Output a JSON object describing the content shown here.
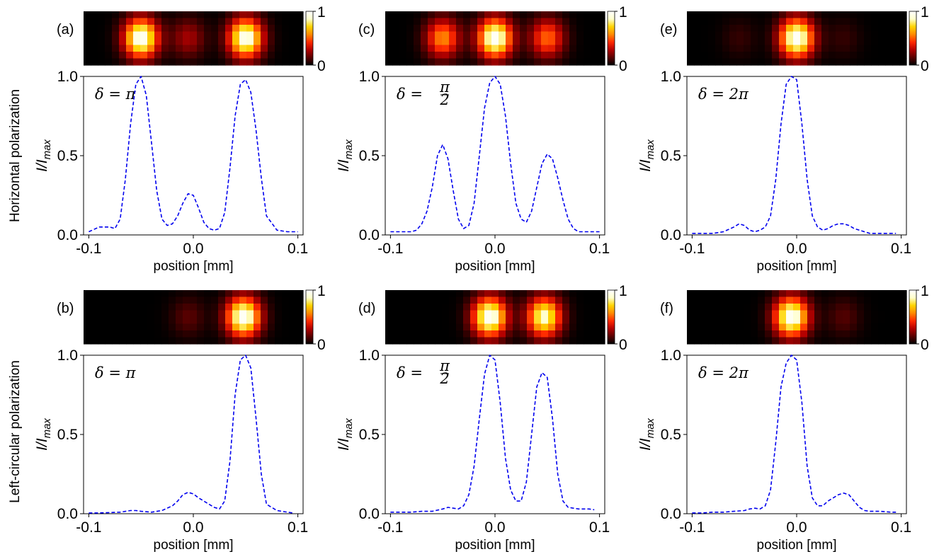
{
  "row_labels": [
    "Horizontal polarization",
    "Left-circular polarization"
  ],
  "colormap": [
    "#000000",
    "#5a0000",
    "#b40000",
    "#ff2a00",
    "#ff8a00",
    "#ffd400",
    "#ffffcc",
    "#ffffff"
  ],
  "line_color": "#0000ee",
  "colorbar_ticks": [
    "1",
    "0"
  ],
  "chart_data": [
    {
      "type": "line",
      "panel_label": "(a)",
      "annotation": "δ = π",
      "xlabel": "position [mm]",
      "ylabel": "I/I_max",
      "xlim": [
        -0.105,
        0.105
      ],
      "ylim": [
        0.0,
        1.0
      ],
      "xticks": [
        "-0.1",
        "0.0",
        "0.1"
      ],
      "yticks": [
        "0.0",
        "0.5",
        "1.0"
      ],
      "x": [
        -0.1,
        -0.09,
        -0.08,
        -0.075,
        -0.07,
        -0.065,
        -0.06,
        -0.055,
        -0.05,
        -0.045,
        -0.04,
        -0.035,
        -0.03,
        -0.025,
        -0.02,
        -0.015,
        -0.01,
        -0.005,
        0.0,
        0.005,
        0.01,
        0.015,
        0.02,
        0.025,
        0.03,
        0.035,
        0.04,
        0.045,
        0.05,
        0.055,
        0.06,
        0.065,
        0.07,
        0.08,
        0.09,
        0.1
      ],
      "y": [
        0.02,
        0.05,
        0.05,
        0.04,
        0.1,
        0.35,
        0.7,
        0.95,
        1.0,
        0.88,
        0.58,
        0.28,
        0.1,
        0.06,
        0.07,
        0.12,
        0.2,
        0.26,
        0.25,
        0.17,
        0.08,
        0.04,
        0.03,
        0.04,
        0.14,
        0.42,
        0.75,
        0.95,
        0.98,
        0.9,
        0.66,
        0.36,
        0.12,
        0.03,
        0.02,
        0.02
      ],
      "heatmap": {
        "spots": [
          {
            "x": -0.05,
            "intensity": 1.0
          },
          {
            "x": -0.005,
            "intensity": 0.26
          },
          {
            "x": 0.05,
            "intensity": 0.98
          }
        ]
      }
    },
    {
      "type": "line",
      "panel_label": "(b)",
      "annotation": "δ = π",
      "xlabel": "position [mm]",
      "ylabel": "I/I_max",
      "xlim": [
        -0.105,
        0.105
      ],
      "ylim": [
        0.0,
        1.0
      ],
      "xticks": [
        "-0.1",
        "0.0",
        "0.1"
      ],
      "yticks": [
        "0.0",
        "0.5",
        "1.0"
      ],
      "x": [
        -0.1,
        -0.09,
        -0.08,
        -0.07,
        -0.06,
        -0.055,
        -0.05,
        -0.04,
        -0.03,
        -0.02,
        -0.015,
        -0.01,
        -0.005,
        0.0,
        0.005,
        0.01,
        0.015,
        0.02,
        0.025,
        0.03,
        0.035,
        0.04,
        0.045,
        0.05,
        0.055,
        0.06,
        0.065,
        0.07,
        0.08,
        0.09,
        0.095
      ],
      "y": [
        0.005,
        0.005,
        0.007,
        0.01,
        0.02,
        0.02,
        0.015,
        0.01,
        0.02,
        0.05,
        0.08,
        0.12,
        0.135,
        0.125,
        0.1,
        0.08,
        0.06,
        0.04,
        0.03,
        0.08,
        0.33,
        0.75,
        0.97,
        1.0,
        0.92,
        0.6,
        0.25,
        0.06,
        0.02,
        0.01,
        0.005
      ],
      "heatmap": {
        "spots": [
          {
            "x": -0.005,
            "intensity": 0.14
          },
          {
            "x": 0.048,
            "intensity": 1.0
          }
        ]
      }
    },
    {
      "type": "line",
      "panel_label": "(c)",
      "annotation": "δ = π/2",
      "xlabel": "position [mm]",
      "ylabel": "I/I_max",
      "xlim": [
        -0.105,
        0.105
      ],
      "ylim": [
        0.0,
        1.0
      ],
      "xticks": [
        "-0.1",
        "0.0",
        "0.1"
      ],
      "yticks": [
        "0.0",
        "0.5",
        "1.0"
      ],
      "x": [
        -0.1,
        -0.09,
        -0.08,
        -0.075,
        -0.07,
        -0.065,
        -0.06,
        -0.055,
        -0.05,
        -0.045,
        -0.04,
        -0.035,
        -0.03,
        -0.025,
        -0.02,
        -0.015,
        -0.01,
        -0.005,
        0.0,
        0.005,
        0.01,
        0.015,
        0.02,
        0.025,
        0.03,
        0.035,
        0.04,
        0.045,
        0.05,
        0.055,
        0.06,
        0.065,
        0.07,
        0.075,
        0.08,
        0.09,
        0.1
      ],
      "y": [
        0.02,
        0.02,
        0.02,
        0.03,
        0.07,
        0.15,
        0.3,
        0.5,
        0.57,
        0.48,
        0.28,
        0.1,
        0.04,
        0.06,
        0.2,
        0.5,
        0.8,
        0.96,
        1.0,
        0.95,
        0.75,
        0.45,
        0.2,
        0.1,
        0.08,
        0.15,
        0.3,
        0.45,
        0.51,
        0.48,
        0.36,
        0.22,
        0.1,
        0.04,
        0.02,
        0.02,
        0.02
      ],
      "heatmap": {
        "spots": [
          {
            "x": -0.05,
            "intensity": 0.58
          },
          {
            "x": 0.0,
            "intensity": 1.0
          },
          {
            "x": 0.05,
            "intensity": 0.52
          }
        ]
      }
    },
    {
      "type": "line",
      "panel_label": "(d)",
      "annotation": "δ = π/2",
      "xlabel": "position [mm]",
      "ylabel": "I/I_max",
      "xlim": [
        -0.105,
        0.105
      ],
      "ylim": [
        0.0,
        1.0
      ],
      "xticks": [
        "-0.1",
        "0.0",
        "0.1"
      ],
      "yticks": [
        "0.0",
        "0.5",
        "1.0"
      ],
      "x": [
        -0.1,
        -0.09,
        -0.08,
        -0.07,
        -0.06,
        -0.05,
        -0.045,
        -0.04,
        -0.035,
        -0.03,
        -0.025,
        -0.02,
        -0.015,
        -0.01,
        -0.005,
        0.0,
        0.005,
        0.01,
        0.015,
        0.02,
        0.025,
        0.03,
        0.035,
        0.04,
        0.045,
        0.05,
        0.055,
        0.06,
        0.065,
        0.07,
        0.08,
        0.09,
        0.095
      ],
      "y": [
        0.01,
        0.01,
        0.01,
        0.015,
        0.015,
        0.03,
        0.04,
        0.035,
        0.03,
        0.05,
        0.12,
        0.3,
        0.6,
        0.88,
        1.0,
        0.97,
        0.7,
        0.35,
        0.15,
        0.08,
        0.08,
        0.2,
        0.5,
        0.8,
        0.89,
        0.86,
        0.6,
        0.25,
        0.08,
        0.04,
        0.03,
        0.03,
        0.025
      ],
      "heatmap": {
        "spots": [
          {
            "x": -0.005,
            "intensity": 1.0
          },
          {
            "x": 0.047,
            "intensity": 0.89
          }
        ]
      }
    },
    {
      "type": "line",
      "panel_label": "(e)",
      "annotation": "δ = 2π",
      "xlabel": "position [mm]",
      "ylabel": "I/I_max",
      "xlim": [
        -0.105,
        0.105
      ],
      "ylim": [
        0.0,
        1.0
      ],
      "xticks": [
        "-0.1",
        "0.0",
        "0.1"
      ],
      "yticks": [
        "0.0",
        "0.5",
        "1.0"
      ],
      "x": [
        -0.1,
        -0.09,
        -0.08,
        -0.07,
        -0.06,
        -0.055,
        -0.05,
        -0.045,
        -0.04,
        -0.035,
        -0.03,
        -0.025,
        -0.02,
        -0.015,
        -0.01,
        -0.005,
        0.0,
        0.005,
        0.01,
        0.015,
        0.02,
        0.025,
        0.03,
        0.035,
        0.04,
        0.045,
        0.05,
        0.055,
        0.06,
        0.07,
        0.08,
        0.09,
        0.095
      ],
      "y": [
        0.01,
        0.01,
        0.01,
        0.02,
        0.05,
        0.07,
        0.06,
        0.03,
        0.02,
        0.03,
        0.05,
        0.12,
        0.35,
        0.7,
        0.95,
        1.0,
        0.98,
        0.7,
        0.35,
        0.12,
        0.05,
        0.03,
        0.04,
        0.06,
        0.07,
        0.07,
        0.06,
        0.04,
        0.03,
        0.01,
        0.01,
        0.01,
        0.01
      ],
      "heatmap": {
        "spots": [
          {
            "x": -0.055,
            "intensity": 0.08
          },
          {
            "x": 0.0,
            "intensity": 1.0
          },
          {
            "x": 0.045,
            "intensity": 0.08
          }
        ]
      }
    },
    {
      "type": "line",
      "panel_label": "(f)",
      "annotation": "δ = 2π",
      "xlabel": "position [mm]",
      "ylabel": "I/I_max",
      "xlim": [
        -0.105,
        0.105
      ],
      "ylim": [
        0.0,
        1.0
      ],
      "xticks": [
        "-0.1",
        "0.0",
        "0.1"
      ],
      "yticks": [
        "0.0",
        "0.5",
        "1.0"
      ],
      "x": [
        -0.1,
        -0.09,
        -0.08,
        -0.07,
        -0.06,
        -0.05,
        -0.045,
        -0.04,
        -0.035,
        -0.03,
        -0.025,
        -0.02,
        -0.015,
        -0.01,
        -0.005,
        0.0,
        0.005,
        0.01,
        0.015,
        0.02,
        0.025,
        0.03,
        0.035,
        0.04,
        0.045,
        0.05,
        0.055,
        0.06,
        0.065,
        0.07,
        0.08,
        0.09,
        0.095
      ],
      "y": [
        0.005,
        0.005,
        0.01,
        0.01,
        0.015,
        0.02,
        0.03,
        0.035,
        0.03,
        0.05,
        0.15,
        0.45,
        0.8,
        0.95,
        1.0,
        0.97,
        0.7,
        0.3,
        0.1,
        0.05,
        0.05,
        0.08,
        0.1,
        0.12,
        0.13,
        0.12,
        0.08,
        0.04,
        0.02,
        0.015,
        0.015,
        0.01,
        0.01
      ],
      "heatmap": {
        "spots": [
          {
            "x": -0.005,
            "intensity": 1.0
          },
          {
            "x": 0.045,
            "intensity": 0.13
          }
        ]
      }
    }
  ]
}
